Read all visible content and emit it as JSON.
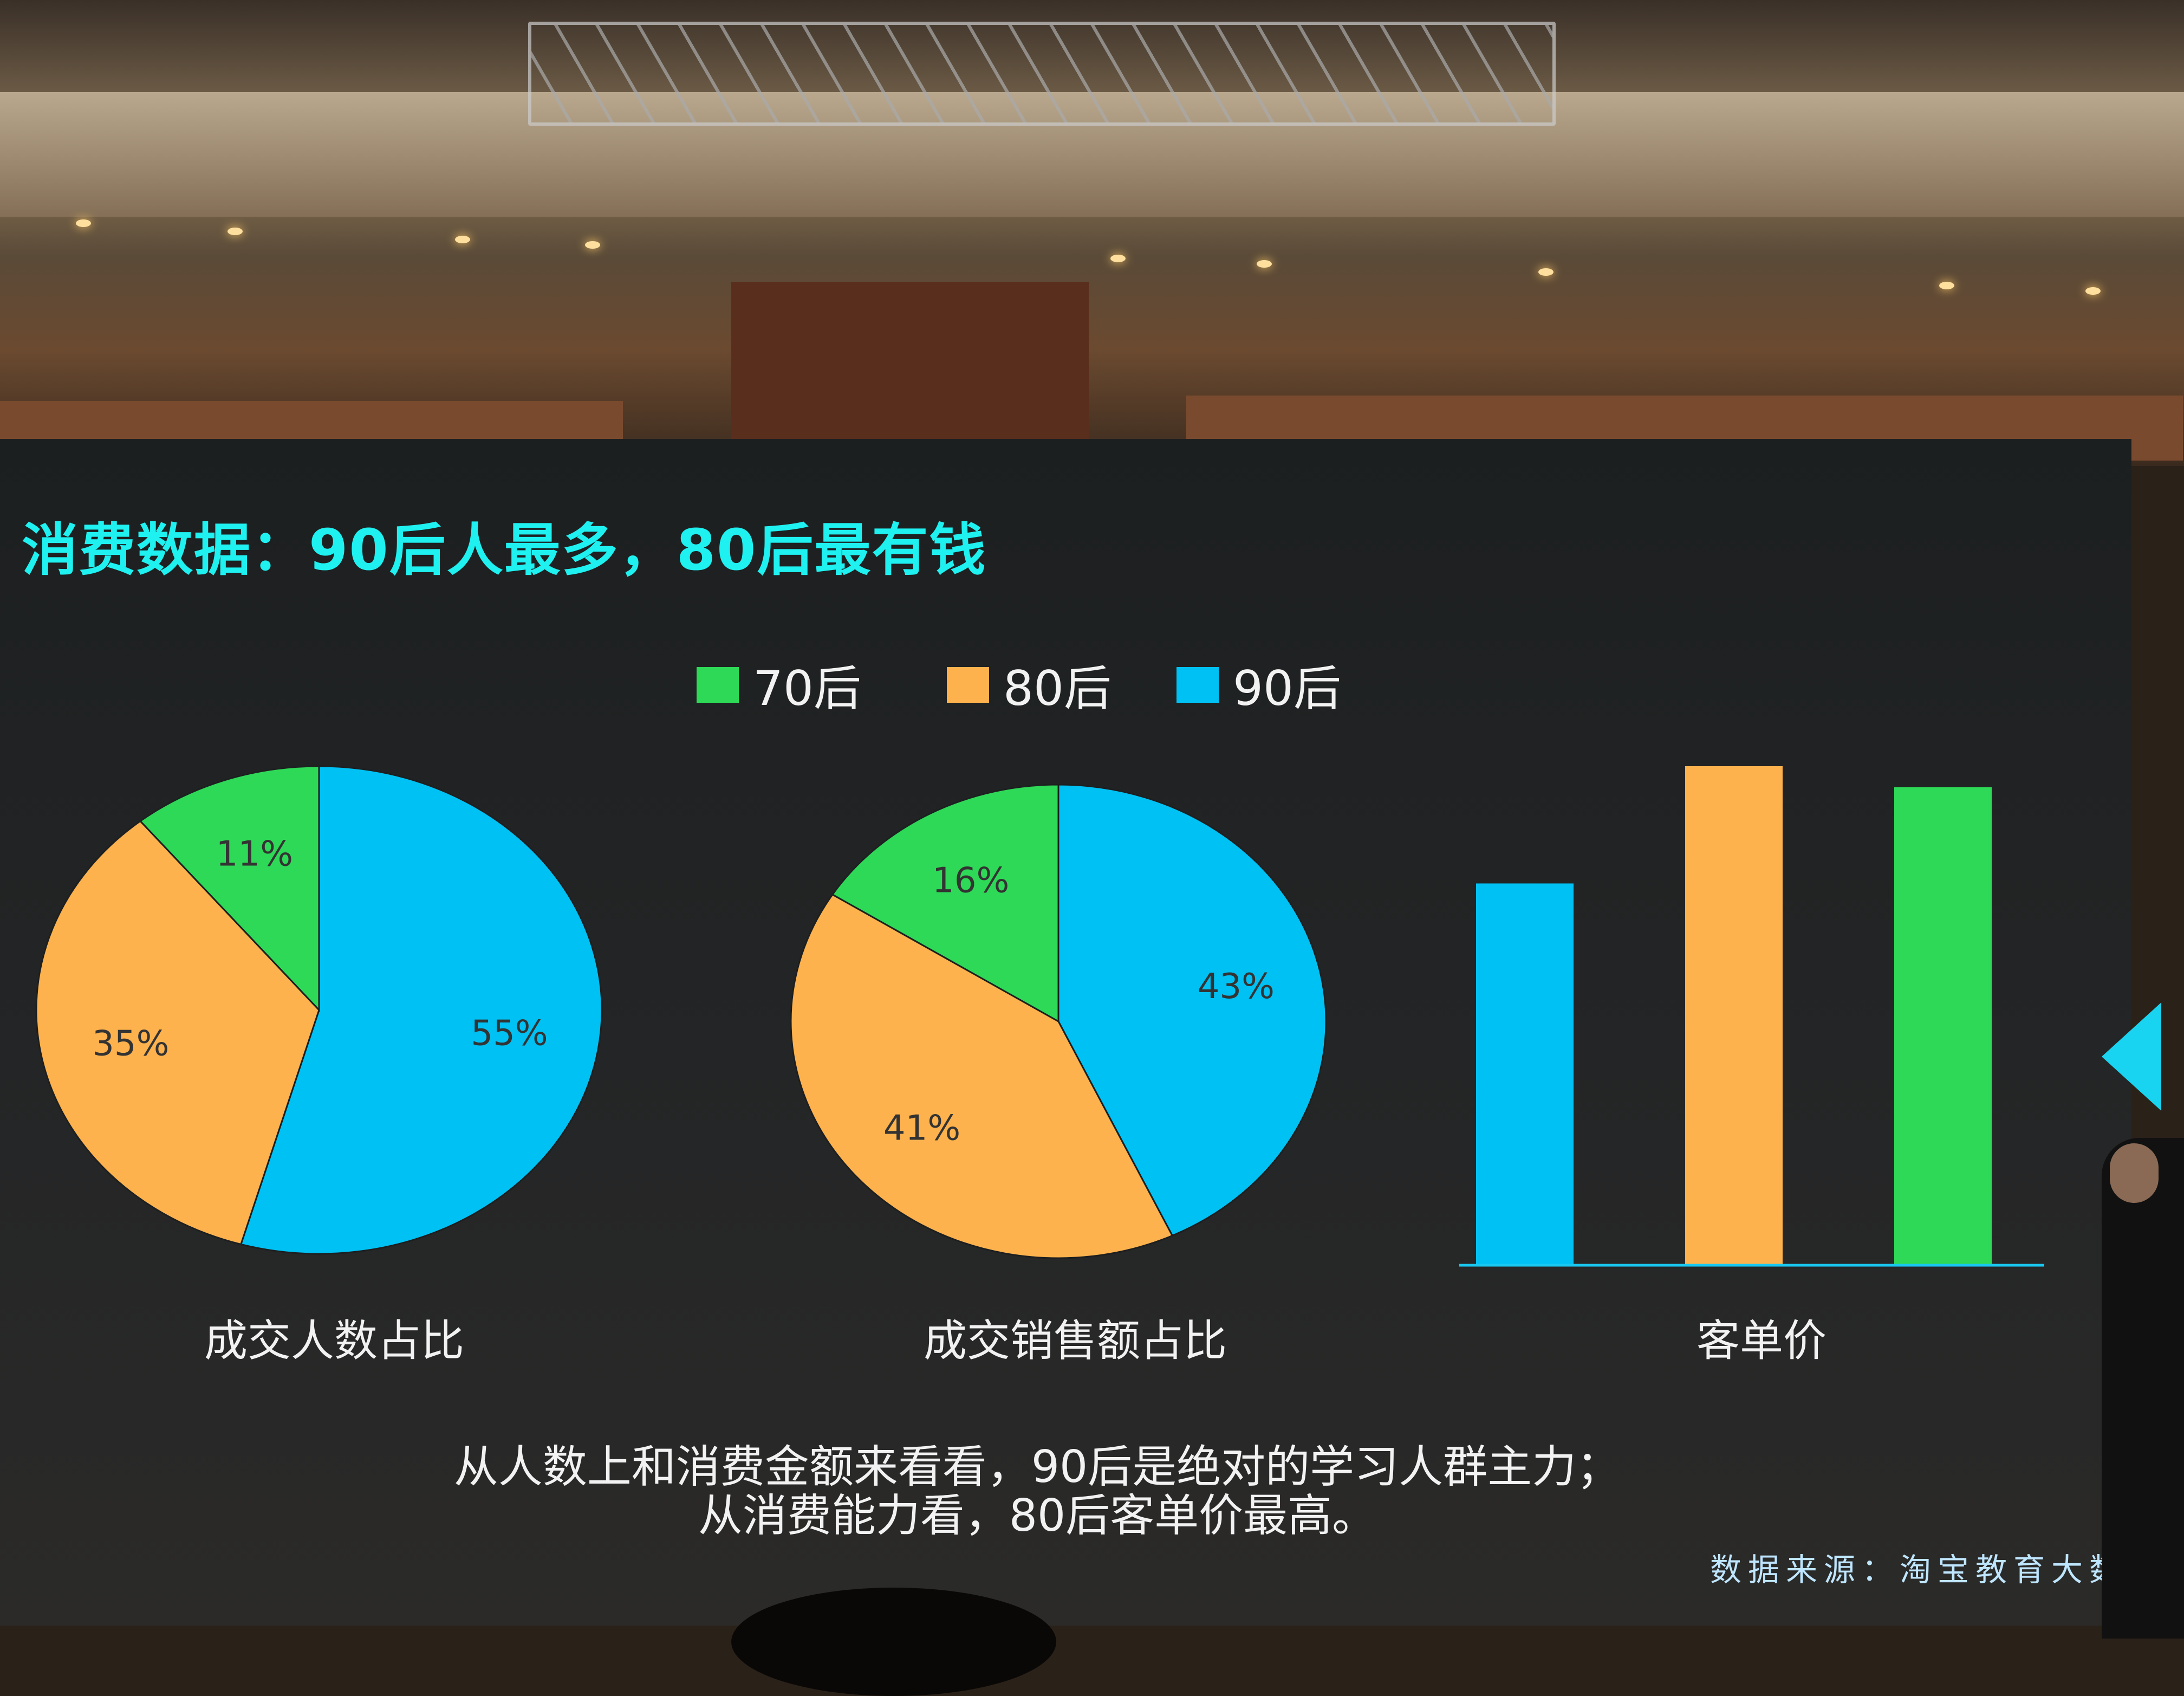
{
  "slide": {
    "title": "消费数据：90后人最多，80后最有钱",
    "legend": [
      {
        "label": "70后",
        "color": "#2ed957"
      },
      {
        "label": "80后",
        "color": "#fdb24e"
      },
      {
        "label": "90后",
        "color": "#00c1f3"
      }
    ],
    "summary_lines": [
      "从人数上和消费金额来看看，90后是绝对的学习人群主力；",
      "从消费能力看，80后客单价最高。"
    ],
    "source": "数据来源：淘宝教育大数"
  },
  "chart_data": [
    {
      "type": "pie",
      "title": "成交人数占比",
      "slices": [
        {
          "label": "90后",
          "value": 55,
          "data_label": "55%",
          "color": "#00c1f3"
        },
        {
          "label": "80后",
          "value": 35,
          "data_label": "35%",
          "color": "#fdb24e"
        },
        {
          "label": "70后",
          "value": 11,
          "data_label": "11%",
          "color": "#2ed957"
        }
      ]
    },
    {
      "type": "pie",
      "title": "成交销售额占比",
      "slices": [
        {
          "label": "90后",
          "value": 43,
          "data_label": "43%",
          "color": "#00c1f3"
        },
        {
          "label": "80后",
          "value": 41,
          "data_label": "41%",
          "color": "#fdb24e"
        },
        {
          "label": "70后",
          "value": 16,
          "data_label": "16%",
          "color": "#2ed957"
        }
      ]
    },
    {
      "type": "bar",
      "title": "客单价",
      "categories": [
        "90后",
        "80后",
        "70后"
      ],
      "values": [
        76.5,
        100,
        95.8
      ],
      "value_note_visible": false,
      "colors": [
        "#00c1f3",
        "#fdb24e",
        "#2ed957"
      ],
      "axis_color": "#19c8f0",
      "grid": false
    }
  ]
}
